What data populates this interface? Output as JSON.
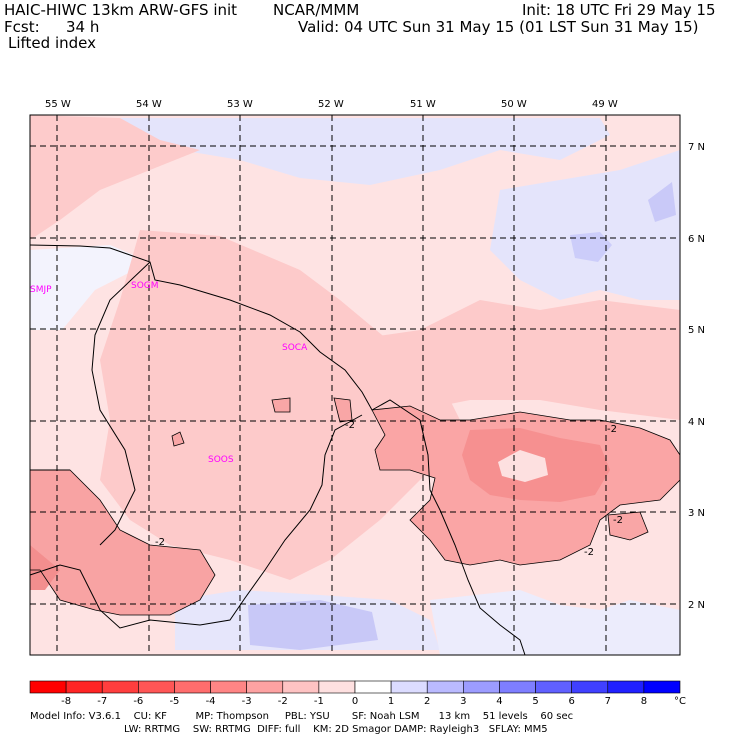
{
  "header": {
    "model": "HAIC-HIWC 13km ARW-GFS init",
    "org": "NCAR/MMM",
    "init": "Init: 18 UTC Fri 29 May 15",
    "fcst_label": "Fcst:",
    "fcst_value": "34 h",
    "valid": "Valid: 04 UTC Sun 31 May 15 (01 LST Sun 31 May 15)",
    "field": "Lifted index"
  },
  "axes": {
    "lon_labels": [
      "55 W",
      "54 W",
      "53 W",
      "52 W",
      "51 W",
      "50 W",
      "49 W"
    ],
    "lat_labels": [
      "7 N",
      "6 N",
      "5 N",
      "4 N",
      "3 N",
      "2 N"
    ]
  },
  "stations": [
    "SMJP",
    "SOGM",
    "SOCA",
    "SOOS"
  ],
  "contour_labels": [
    "-2",
    "-2",
    "-2",
    "-2",
    "-2"
  ],
  "colorbar": {
    "ticks": [
      "-8",
      "-7",
      "-6",
      "-5",
      "-4",
      "-3",
      "-2",
      "-1",
      "0",
      "1",
      "2",
      "3",
      "4",
      "5",
      "6",
      "7",
      "8"
    ],
    "unit": "°C",
    "colors": [
      "#ff0000",
      "#ff2525",
      "#ff3e3e",
      "#ff5656",
      "#ff6d6d",
      "#ff8585",
      "#fda2a2",
      "#fec3c3",
      "#fee0e0",
      "#ffffff",
      "#dcdcff",
      "#babaff",
      "#9c9cff",
      "#7e7eff",
      "#6060ff",
      "#4040ff",
      "#2020ff",
      "#0000ff"
    ]
  },
  "footer": {
    "line1": "Model Info: V3.6.1    CU: KF         MP: Thompson     PBL: YSU       SF: Noah LSM      13 km    51 levels    60 sec",
    "line2": "LW: RRTMG    SW: RRTMG  DIFF: full    KM: 2D Smagor DAMP: Rayleigh3   SFLAY: MM5"
  }
}
